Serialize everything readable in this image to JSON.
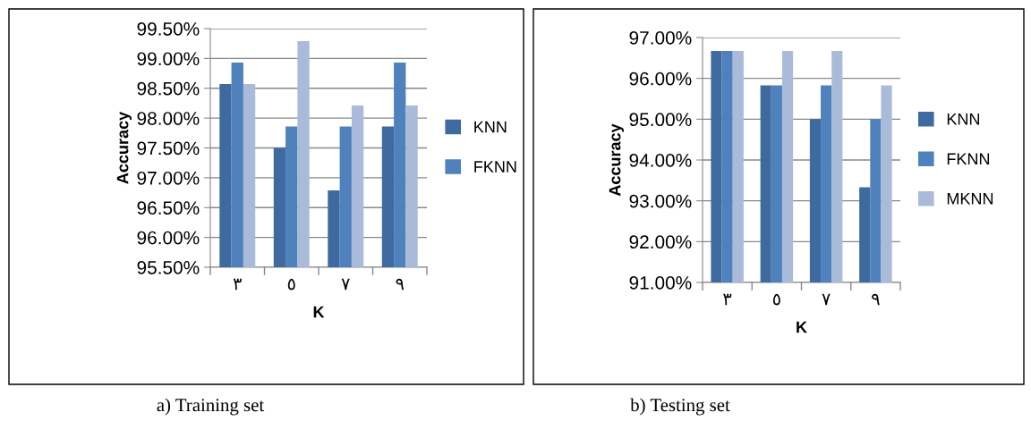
{
  "chart_data": [
    {
      "type": "bar",
      "categories": [
        "٣",
        "٥",
        "٧",
        "٩"
      ],
      "xlabel": "K",
      "ylabel": "Accuracy",
      "series": [
        {
          "name": "KNN",
          "color": "#3f6a9f",
          "values": [
            98.57,
            97.5,
            96.79,
            97.86
          ]
        },
        {
          "name": "FKNN",
          "color": "#4f81bd",
          "values": [
            98.93,
            97.86,
            97.86,
            98.93
          ]
        },
        {
          "color": "#a9bbd9",
          "values": [
            98.57,
            99.29,
            98.21,
            98.21
          ]
        }
      ],
      "ylim": [
        95.5,
        99.5
      ],
      "yticks": [
        {
          "value": 95.5,
          "label": "95.50%"
        },
        {
          "value": 96,
          "label": "96.00%"
        },
        {
          "value": 96.5,
          "label": "96.50%"
        },
        {
          "value": 97,
          "label": "97.00%"
        },
        {
          "value": 97.5,
          "label": "97.50%"
        },
        {
          "value": 98,
          "label": "98.00%"
        },
        {
          "value": 98.5,
          "label": "98.50%"
        },
        {
          "value": 99,
          "label": "99.00%"
        },
        {
          "value": 99.5,
          "label": "99.50%"
        }
      ],
      "grid": "y",
      "legend": "right",
      "annotations": [
        "a) Training set"
      ]
    },
    {
      "type": "bar",
      "categories": [
        "٣",
        "٥",
        "٧",
        "٩"
      ],
      "xlabel": "K",
      "ylabel": "Accuracy",
      "series": [
        {
          "name": "KNN",
          "color": "#3f6a9f",
          "values": [
            96.67,
            95.83,
            95.0,
            93.33
          ]
        },
        {
          "name": "FKNN",
          "color": "#4f81bd",
          "values": [
            96.67,
            95.83,
            95.83,
            95.0
          ]
        },
        {
          "name": "MKNN",
          "color": "#a9bbd9",
          "values": [
            96.67,
            96.67,
            96.67,
            95.83
          ]
        }
      ],
      "ylim": [
        91,
        97
      ],
      "yticks": [
        {
          "value": 91,
          "label": "91.00%"
        },
        {
          "value": 92,
          "label": "92.00%"
        },
        {
          "value": 93,
          "label": "93.00%"
        },
        {
          "value": 94,
          "label": "94.00%"
        },
        {
          "value": 95,
          "label": "95.00%"
        },
        {
          "value": 96,
          "label": "96.00%"
        },
        {
          "value": 97,
          "label": "97.00%"
        }
      ],
      "grid": "y",
      "legend": "right",
      "annotations": [
        "b) Testing set"
      ]
    }
  ]
}
